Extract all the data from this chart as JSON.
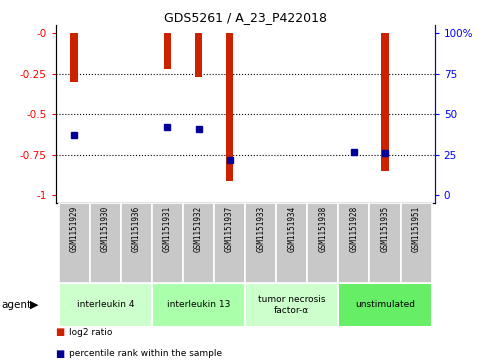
{
  "title": "GDS5261 / A_23_P422018",
  "samples": [
    "GSM1151929",
    "GSM1151930",
    "GSM1151936",
    "GSM1151931",
    "GSM1151932",
    "GSM1151937",
    "GSM1151933",
    "GSM1151934",
    "GSM1151938",
    "GSM1151928",
    "GSM1151935",
    "GSM1151951"
  ],
  "log2_ratio": [
    -0.3,
    0.0,
    0.0,
    -0.22,
    -0.27,
    -0.91,
    0.0,
    0.0,
    0.0,
    0.0,
    -0.85,
    0.0
  ],
  "percentile_rank": [
    37,
    0,
    0,
    42,
    41,
    22,
    0,
    0,
    0,
    27,
    26,
    0
  ],
  "percentile_show": [
    true,
    false,
    false,
    true,
    true,
    true,
    false,
    false,
    false,
    true,
    true,
    false
  ],
  "ylim_left": [
    -1.05,
    0.05
  ],
  "yticks_left": [
    0,
    -0.25,
    -0.5,
    -0.75,
    -1
  ],
  "ytick_labels_left": [
    "-0",
    "-0.25",
    "-0.5",
    "-0.75",
    "-1"
  ],
  "ytick_labels_right": [
    "100%",
    "75",
    "50",
    "25",
    "0"
  ],
  "agents": [
    {
      "label": "interleukin 4",
      "samples": [
        0,
        1,
        2
      ],
      "color": "#ccffcc"
    },
    {
      "label": "interleukin 13",
      "samples": [
        3,
        4,
        5
      ],
      "color": "#aaffaa"
    },
    {
      "label": "tumor necrosis\nfactor-α",
      "samples": [
        6,
        7,
        8
      ],
      "color": "#ccffcc"
    },
    {
      "label": "unstimulated",
      "samples": [
        9,
        10,
        11
      ],
      "color": "#66ee66"
    }
  ],
  "bar_color": "#cc2200",
  "dot_color": "#000099",
  "background_color": "#ffffff",
  "sample_bg_color": "#c8c8c8",
  "bar_width": 0.25
}
